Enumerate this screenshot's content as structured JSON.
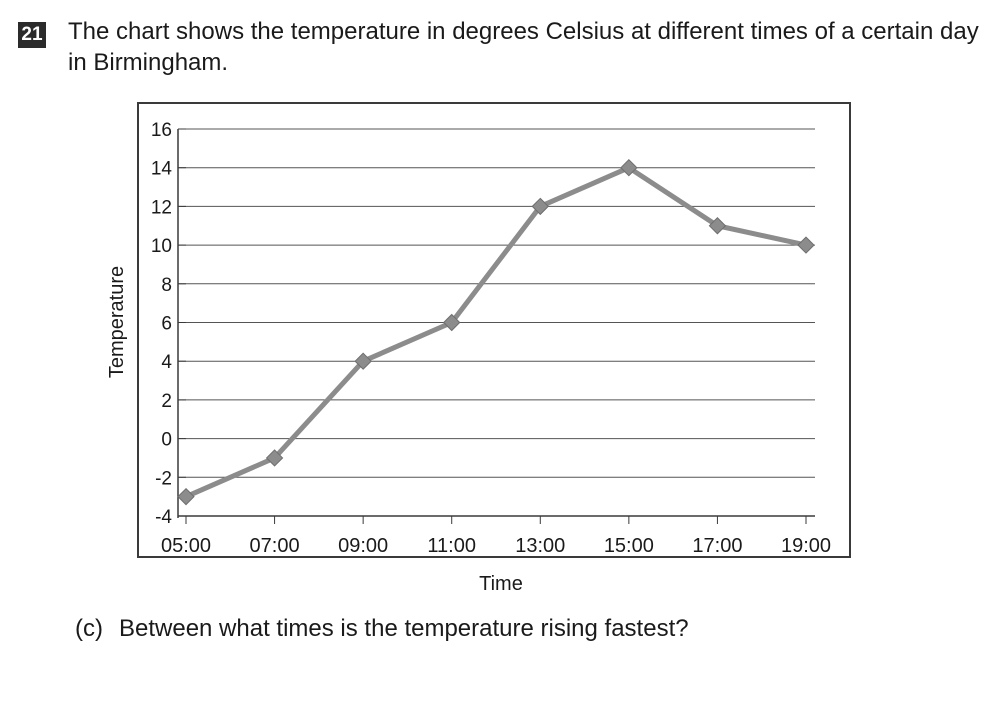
{
  "question": {
    "number": "21",
    "text": "The chart shows the temperature in degrees Celsius at different times of a certain day in Birmingham."
  },
  "subquestion": {
    "label": "(c)",
    "text": "Between what times is the temperature rising fastest?"
  },
  "chart_data": {
    "type": "line",
    "title": "",
    "xlabel": "Time",
    "ylabel": "Temperature",
    "categories": [
      "05:00",
      "07:00",
      "09:00",
      "11:00",
      "13:00",
      "15:00",
      "17:00",
      "19:00"
    ],
    "series": [
      {
        "values": [
          -3,
          -1,
          4,
          6,
          12,
          14,
          11,
          10
        ]
      }
    ],
    "ylim": [
      -4,
      16
    ],
    "yticks": [
      -4,
      -2,
      0,
      2,
      4,
      6,
      8,
      10,
      12,
      14,
      16
    ],
    "grid": true,
    "legend": "none",
    "colors": {
      "line": "#8c8c8c",
      "marker": "#8c8c8c",
      "grid": "#555555",
      "frame": "#3a3a3a"
    }
  }
}
